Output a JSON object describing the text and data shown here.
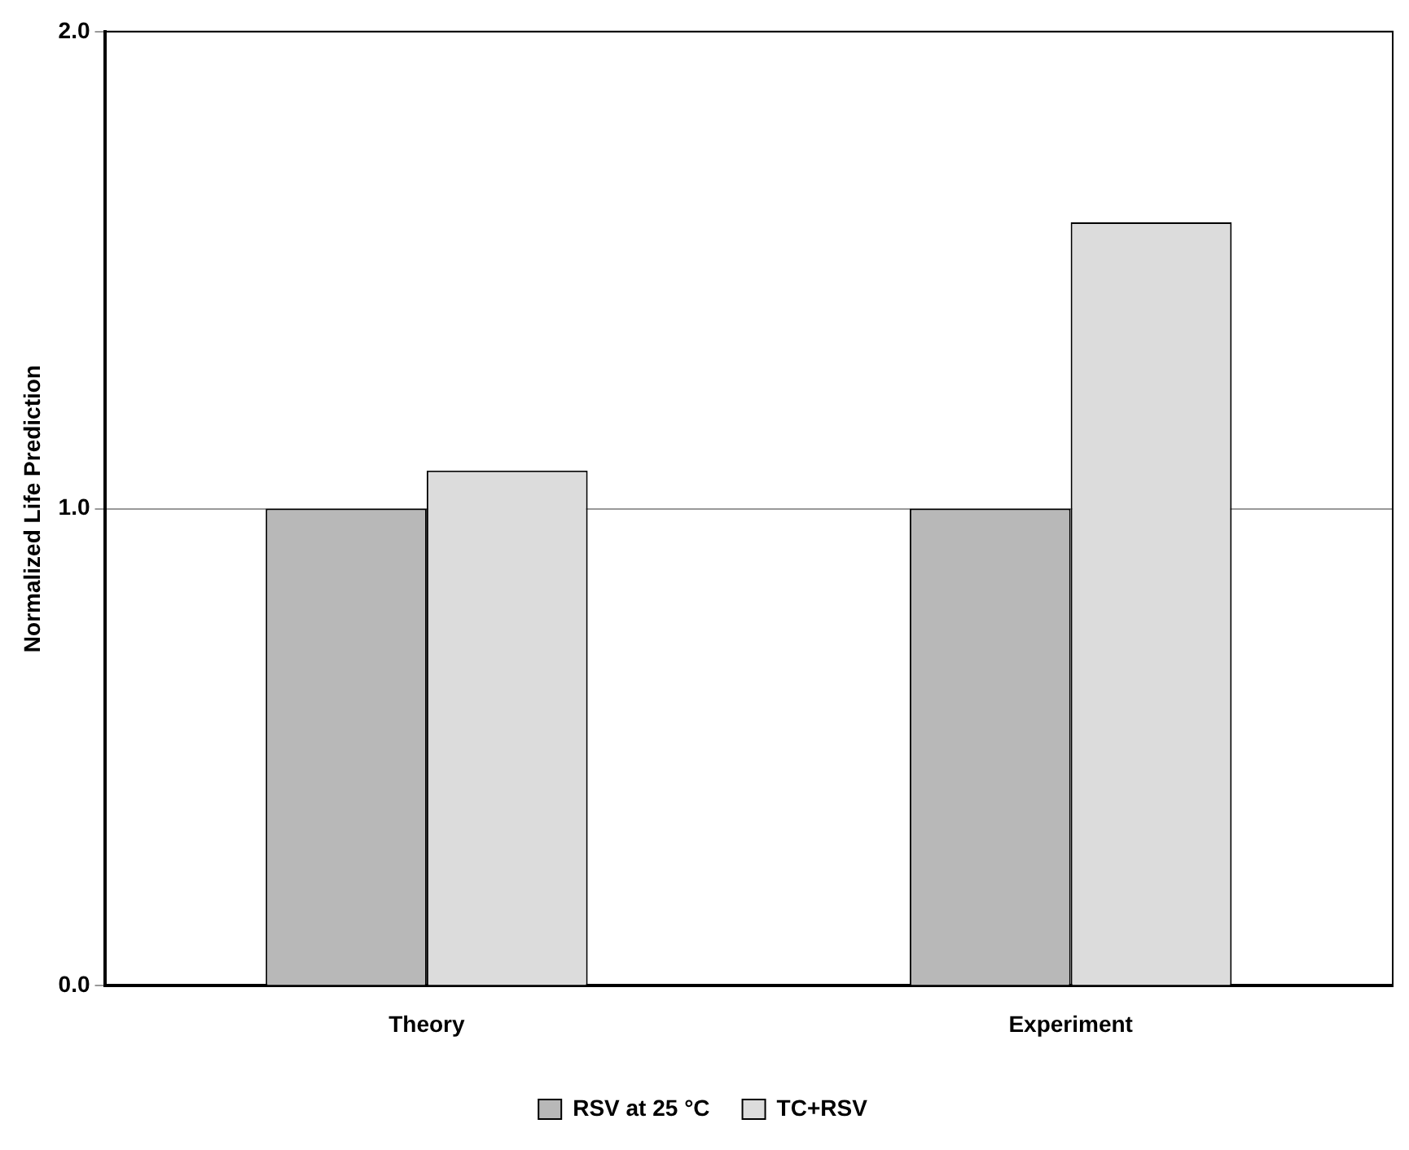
{
  "chart_data": {
    "type": "bar",
    "ylabel": "Normalized Life Prediction",
    "categories": [
      "Theory",
      "Experiment"
    ],
    "series": [
      {
        "name": "RSV at 25 °C",
        "color": "#b8b8b8",
        "values": [
          1.0,
          1.0
        ]
      },
      {
        "name": "TC+RSV",
        "color": "#dcdcdc",
        "values": [
          1.08,
          1.6
        ]
      }
    ],
    "ylim": [
      0,
      2
    ],
    "yticks": [
      {
        "value": 0,
        "label": "0.0"
      },
      {
        "value": 1,
        "label": "1.0"
      },
      {
        "value": 2,
        "label": "2.0"
      }
    ],
    "grid": "y",
    "legend": "bottom"
  }
}
